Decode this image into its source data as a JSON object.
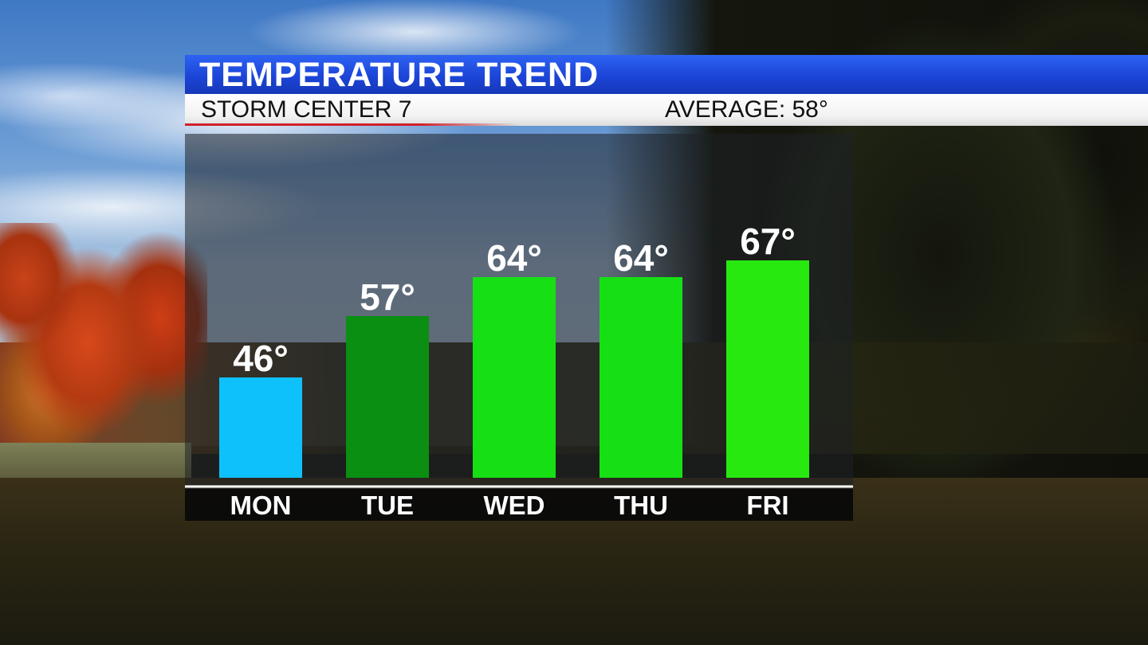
{
  "header": {
    "title": "TEMPERATURE TREND",
    "station": "STORM CENTER 7",
    "average": "AVERAGE: 58°"
  },
  "colors": {
    "banner_blue": "#1f4ae0",
    "cold_bar": "#0fc1fb",
    "mild_bar": "#0a8f12",
    "warm_bar": "#16e014",
    "warmest_bar": "#27e90f",
    "red_rule": "#d0202a"
  },
  "chart_data": {
    "type": "bar",
    "title": "TEMPERATURE TREND",
    "categories": [
      "MON",
      "TUE",
      "WED",
      "THU",
      "FRI"
    ],
    "values": [
      46,
      57,
      64,
      64,
      67
    ],
    "value_labels": [
      "46°",
      "57°",
      "64°",
      "64°",
      "67°"
    ],
    "bar_colors": [
      "#0fc1fb",
      "#0a8f12",
      "#16e014",
      "#16e014",
      "#27e90f"
    ],
    "xlabel": "",
    "ylabel": "",
    "ylim": [
      28,
      84
    ],
    "grid": false,
    "legend": "none"
  }
}
